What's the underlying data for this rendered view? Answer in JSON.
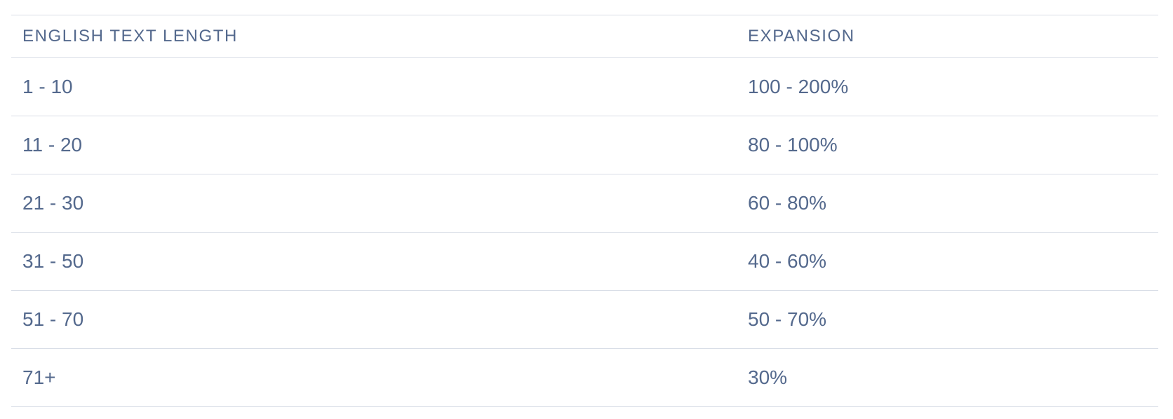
{
  "table": {
    "headers": [
      "ENGLISH TEXT LENGTH",
      "EXPANSION"
    ],
    "rows": [
      {
        "length": "1 - 10",
        "expansion": "100 - 200%"
      },
      {
        "length": "11 - 20",
        "expansion": "80 - 100%"
      },
      {
        "length": "21 - 30",
        "expansion": "60 - 80%"
      },
      {
        "length": "31 - 50",
        "expansion": "40 - 60%"
      },
      {
        "length": "51 - 70",
        "expansion": "50 - 70%"
      },
      {
        "length": "71+",
        "expansion": "30%"
      }
    ]
  },
  "colors": {
    "text": "#54698d",
    "border": "#d8dde6"
  }
}
